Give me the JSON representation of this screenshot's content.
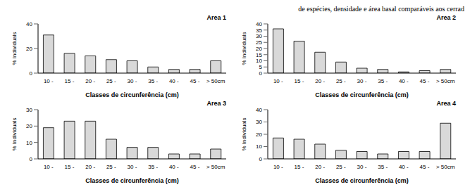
{
  "text": "de espécies, densidade e área basal comparáveis aos cerrad",
  "chart_data": [
    {
      "type": "bar",
      "title": "Area 1",
      "x_label": "Classes de circunferência (cm)",
      "y_label": "% Individuals",
      "categories": [
        "10 -",
        "15 -",
        "20 -",
        "25 -",
        "30 -",
        "35 -",
        "40 -",
        "45 -",
        "> 50cm"
      ],
      "values": [
        31,
        16,
        14,
        11,
        10,
        5,
        3,
        3,
        10
      ],
      "color": "#d9d9d9",
      "ylim": [
        0,
        40
      ],
      "yticks": [
        0,
        20,
        40
      ],
      "grid": false
    },
    {
      "type": "bar",
      "title": "Area 2",
      "x_label": "Classes de circunferência (cm)",
      "y_label": "% Individuals",
      "categories": [
        "10 -",
        "15 -",
        "20 -",
        "25 -",
        "30 -",
        "35 -",
        "40 -",
        "45 -",
        "> 50cm"
      ],
      "values": [
        36,
        26,
        17,
        9,
        4,
        3,
        1,
        2,
        3
      ],
      "color": "#d9d9d9",
      "ylim": [
        0,
        40
      ],
      "yticks": [
        0,
        5,
        10,
        15,
        20,
        25,
        30,
        35,
        40
      ],
      "grid": false
    },
    {
      "type": "bar",
      "title": "Area 3",
      "x_label": "Classes de circunferência (cm)",
      "y_label": "% Individuals",
      "categories": [
        "10 -",
        "15 -",
        "20 -",
        "25 -",
        "30 -",
        "35 -",
        "40 -",
        "45 -",
        "> 50cm"
      ],
      "values": [
        19,
        23,
        23,
        12,
        7,
        7,
        3,
        3,
        6
      ],
      "color": "#d9d9d9",
      "ylim": [
        0,
        30
      ],
      "yticks": [
        0,
        10,
        20,
        30
      ],
      "grid": false
    },
    {
      "type": "bar",
      "title": "Area 4",
      "x_label": "Classes de circunferência (cm)",
      "y_label": "% Individuals",
      "categories": [
        "10 -",
        "15 -",
        "20 -",
        "25 -",
        "30 -",
        "35 -",
        "40 -",
        "45 -",
        "> 50cm"
      ],
      "values": [
        17,
        16,
        12,
        7,
        6,
        4,
        6,
        6,
        29
      ],
      "color": "#d9d9d9",
      "ylim": [
        0,
        40
      ],
      "yticks": [
        0,
        10,
        20,
        30,
        40
      ],
      "grid": false
    }
  ]
}
